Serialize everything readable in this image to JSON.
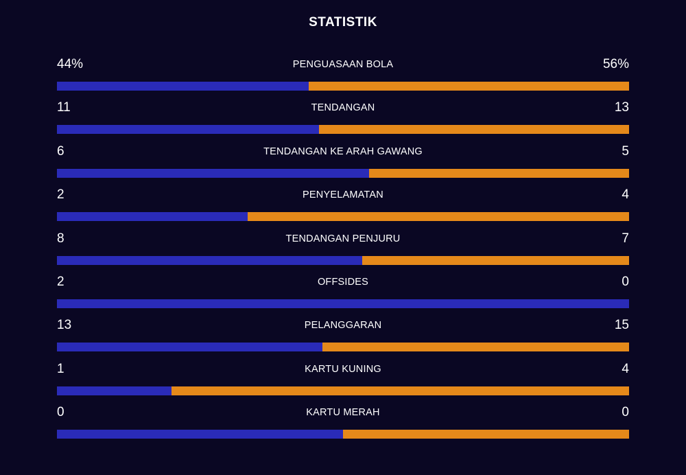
{
  "title": "STATISTIK",
  "colors": {
    "background": "#0a0723",
    "home": "#2a2bb8",
    "away": "#e5891a"
  },
  "stats": [
    {
      "label": "PENGUASAAN BOLA",
      "left": "44%",
      "right": "56%",
      "home_share": 0.44
    },
    {
      "label": "TENDANGAN",
      "left": "11",
      "right": "13",
      "home_share": 0.458
    },
    {
      "label": "TENDANGAN KE ARAH GAWANG",
      "left": "6",
      "right": "5",
      "home_share": 0.545
    },
    {
      "label": "PENYELAMATAN",
      "left": "2",
      "right": "4",
      "home_share": 0.333
    },
    {
      "label": "TENDANGAN PENJURU",
      "left": "8",
      "right": "7",
      "home_share": 0.533
    },
    {
      "label": "OFFSIDES",
      "left": "2",
      "right": "0",
      "home_share": 1.0
    },
    {
      "label": "PELANGGARAN",
      "left": "13",
      "right": "15",
      "home_share": 0.464
    },
    {
      "label": "KARTU KUNING",
      "left": "1",
      "right": "4",
      "home_share": 0.2
    },
    {
      "label": "KARTU MERAH",
      "left": "0",
      "right": "0",
      "home_share": 0.5
    }
  ]
}
